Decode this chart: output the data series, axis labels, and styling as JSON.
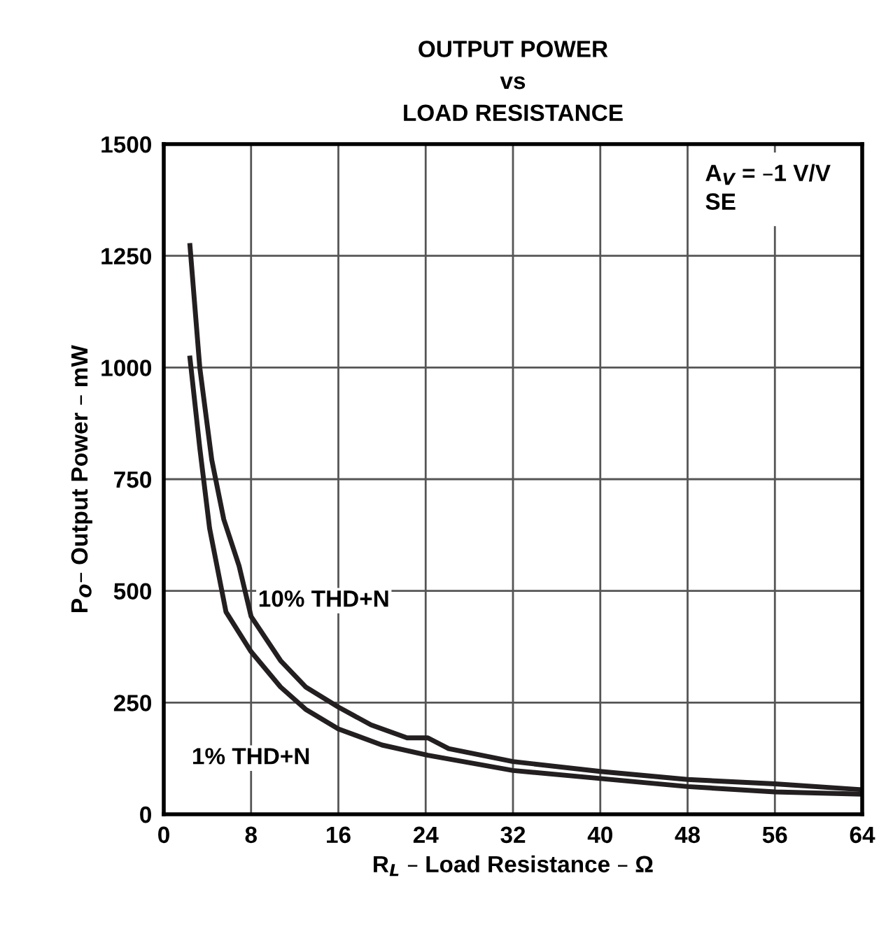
{
  "chart_data": {
    "type": "line",
    "title": "OUTPUT POWER\nvs\nLOAD RESISTANCE",
    "xlabel": "R$_{L}$ – Load Resistance – Ω",
    "ylabel": "P$_{O}$– Output Power – mW",
    "xlim": [
      0,
      64
    ],
    "xticks": [
      0,
      8,
      16,
      24,
      32,
      40,
      48,
      56,
      64
    ],
    "ylim": [
      0,
      1500
    ],
    "yticks": [
      0,
      250,
      500,
      750,
      1000,
      1250,
      1500
    ],
    "grid": true,
    "marker": "none",
    "line_style": "solid",
    "series": [
      {
        "color": "#231f20",
        "x": [
          2.4,
          3.3,
          4.4,
          5.5,
          6.9,
          8,
          10.7,
          13,
          16,
          19,
          22.3,
          24.2,
          26.1,
          32,
          40,
          48,
          56,
          64
        ],
        "values": [
          1273,
          1000,
          793,
          660,
          556,
          443,
          344,
          285,
          240,
          200,
          171,
          171,
          147,
          118,
          96,
          78,
          68,
          55
        ]
      },
      {
        "color": "#231f20",
        "x": [
          2.4,
          3.3,
          4.2,
          5.7,
          8,
          10.7,
          13,
          16,
          20,
          24.2,
          32,
          40,
          48,
          56,
          64
        ],
        "values": [
          1021,
          820,
          640,
          453,
          364,
          285,
          235,
          191,
          155,
          132,
          98,
          80,
          62,
          50,
          45
        ]
      }
    ],
    "annotations": [
      "10% THD+N",
      "1% THD+N",
      "A$_{V}$ = –1 V/V\nSE"
    ]
  }
}
